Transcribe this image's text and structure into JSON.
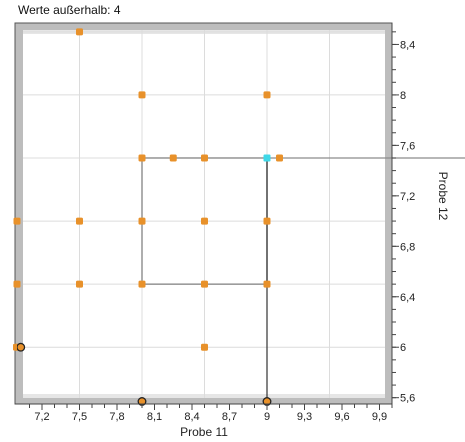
{
  "chart_data": {
    "type": "scatter",
    "annotation": "Werte außerhalb: 4",
    "xlabel": "Probe 11",
    "ylabel": "Probe 12",
    "xlim": [
      7.0,
      10.0
    ],
    "ylim": [
      5.55,
      8.57
    ],
    "x_ticks": [
      7.2,
      7.5,
      7.8,
      8.1,
      8.4,
      8.7,
      9.0,
      9.3,
      9.6,
      9.9
    ],
    "x_tick_labels": [
      "7,2",
      "7,5",
      "7,8",
      "8,1",
      "8,4",
      "8,7",
      "9",
      "9,3",
      "9,6",
      "9,9"
    ],
    "y_ticks": [
      5.6,
      6.0,
      6.4,
      6.8,
      7.2,
      7.6,
      8.0,
      8.4
    ],
    "y_tick_labels": [
      "5,6",
      "6",
      "6,4",
      "6,8",
      "7,2",
      "7,6",
      "8",
      "8,4"
    ],
    "x_grid": [
      7.0,
      7.5,
      8.0,
      8.5,
      9.0,
      9.5
    ],
    "y_grid": [
      6.0,
      6.5,
      7.0,
      7.5,
      8.0,
      8.5
    ],
    "grid": true,
    "colors": {
      "point": "#e8912a",
      "highlight": "#3ed8e8",
      "frame": "#bdbdbd",
      "grid": "#dcdcdc",
      "line": "#8c8c8c"
    },
    "series": [
      {
        "values": [
          {
            "x": 7.5,
            "y": 8.5
          },
          {
            "x": 8.0,
            "y": 8.0
          },
          {
            "x": 9.0,
            "y": 8.0
          },
          {
            "x": 8.0,
            "y": 7.5
          },
          {
            "x": 8.25,
            "y": 7.5
          },
          {
            "x": 8.5,
            "y": 7.5
          },
          {
            "x": 9.1,
            "y": 7.5
          },
          {
            "x": 7.0,
            "y": 7.0
          },
          {
            "x": 7.5,
            "y": 7.0
          },
          {
            "x": 8.0,
            "y": 7.0
          },
          {
            "x": 8.5,
            "y": 7.0
          },
          {
            "x": 9.0,
            "y": 7.0
          },
          {
            "x": 7.0,
            "y": 6.5
          },
          {
            "x": 7.5,
            "y": 6.5
          },
          {
            "x": 8.0,
            "y": 6.5
          },
          {
            "x": 8.5,
            "y": 6.5
          },
          {
            "x": 9.0,
            "y": 6.5
          },
          {
            "x": 7.0,
            "y": 6.0
          },
          {
            "x": 8.5,
            "y": 6.0
          }
        ]
      }
    ],
    "highlight_point": {
      "x": 9.0,
      "y": 7.5
    },
    "outside_marked": [
      {
        "x": 7.03,
        "y": 6.0
      },
      {
        "x": 8.0,
        "y": 5.57
      },
      {
        "x": 9.0,
        "y": 5.57
      }
    ],
    "box": {
      "x0": 8.0,
      "x1": 9.0,
      "y0": 6.5,
      "y1": 7.5
    },
    "crosshair": {
      "x": 9.0,
      "y": 7.5
    }
  }
}
